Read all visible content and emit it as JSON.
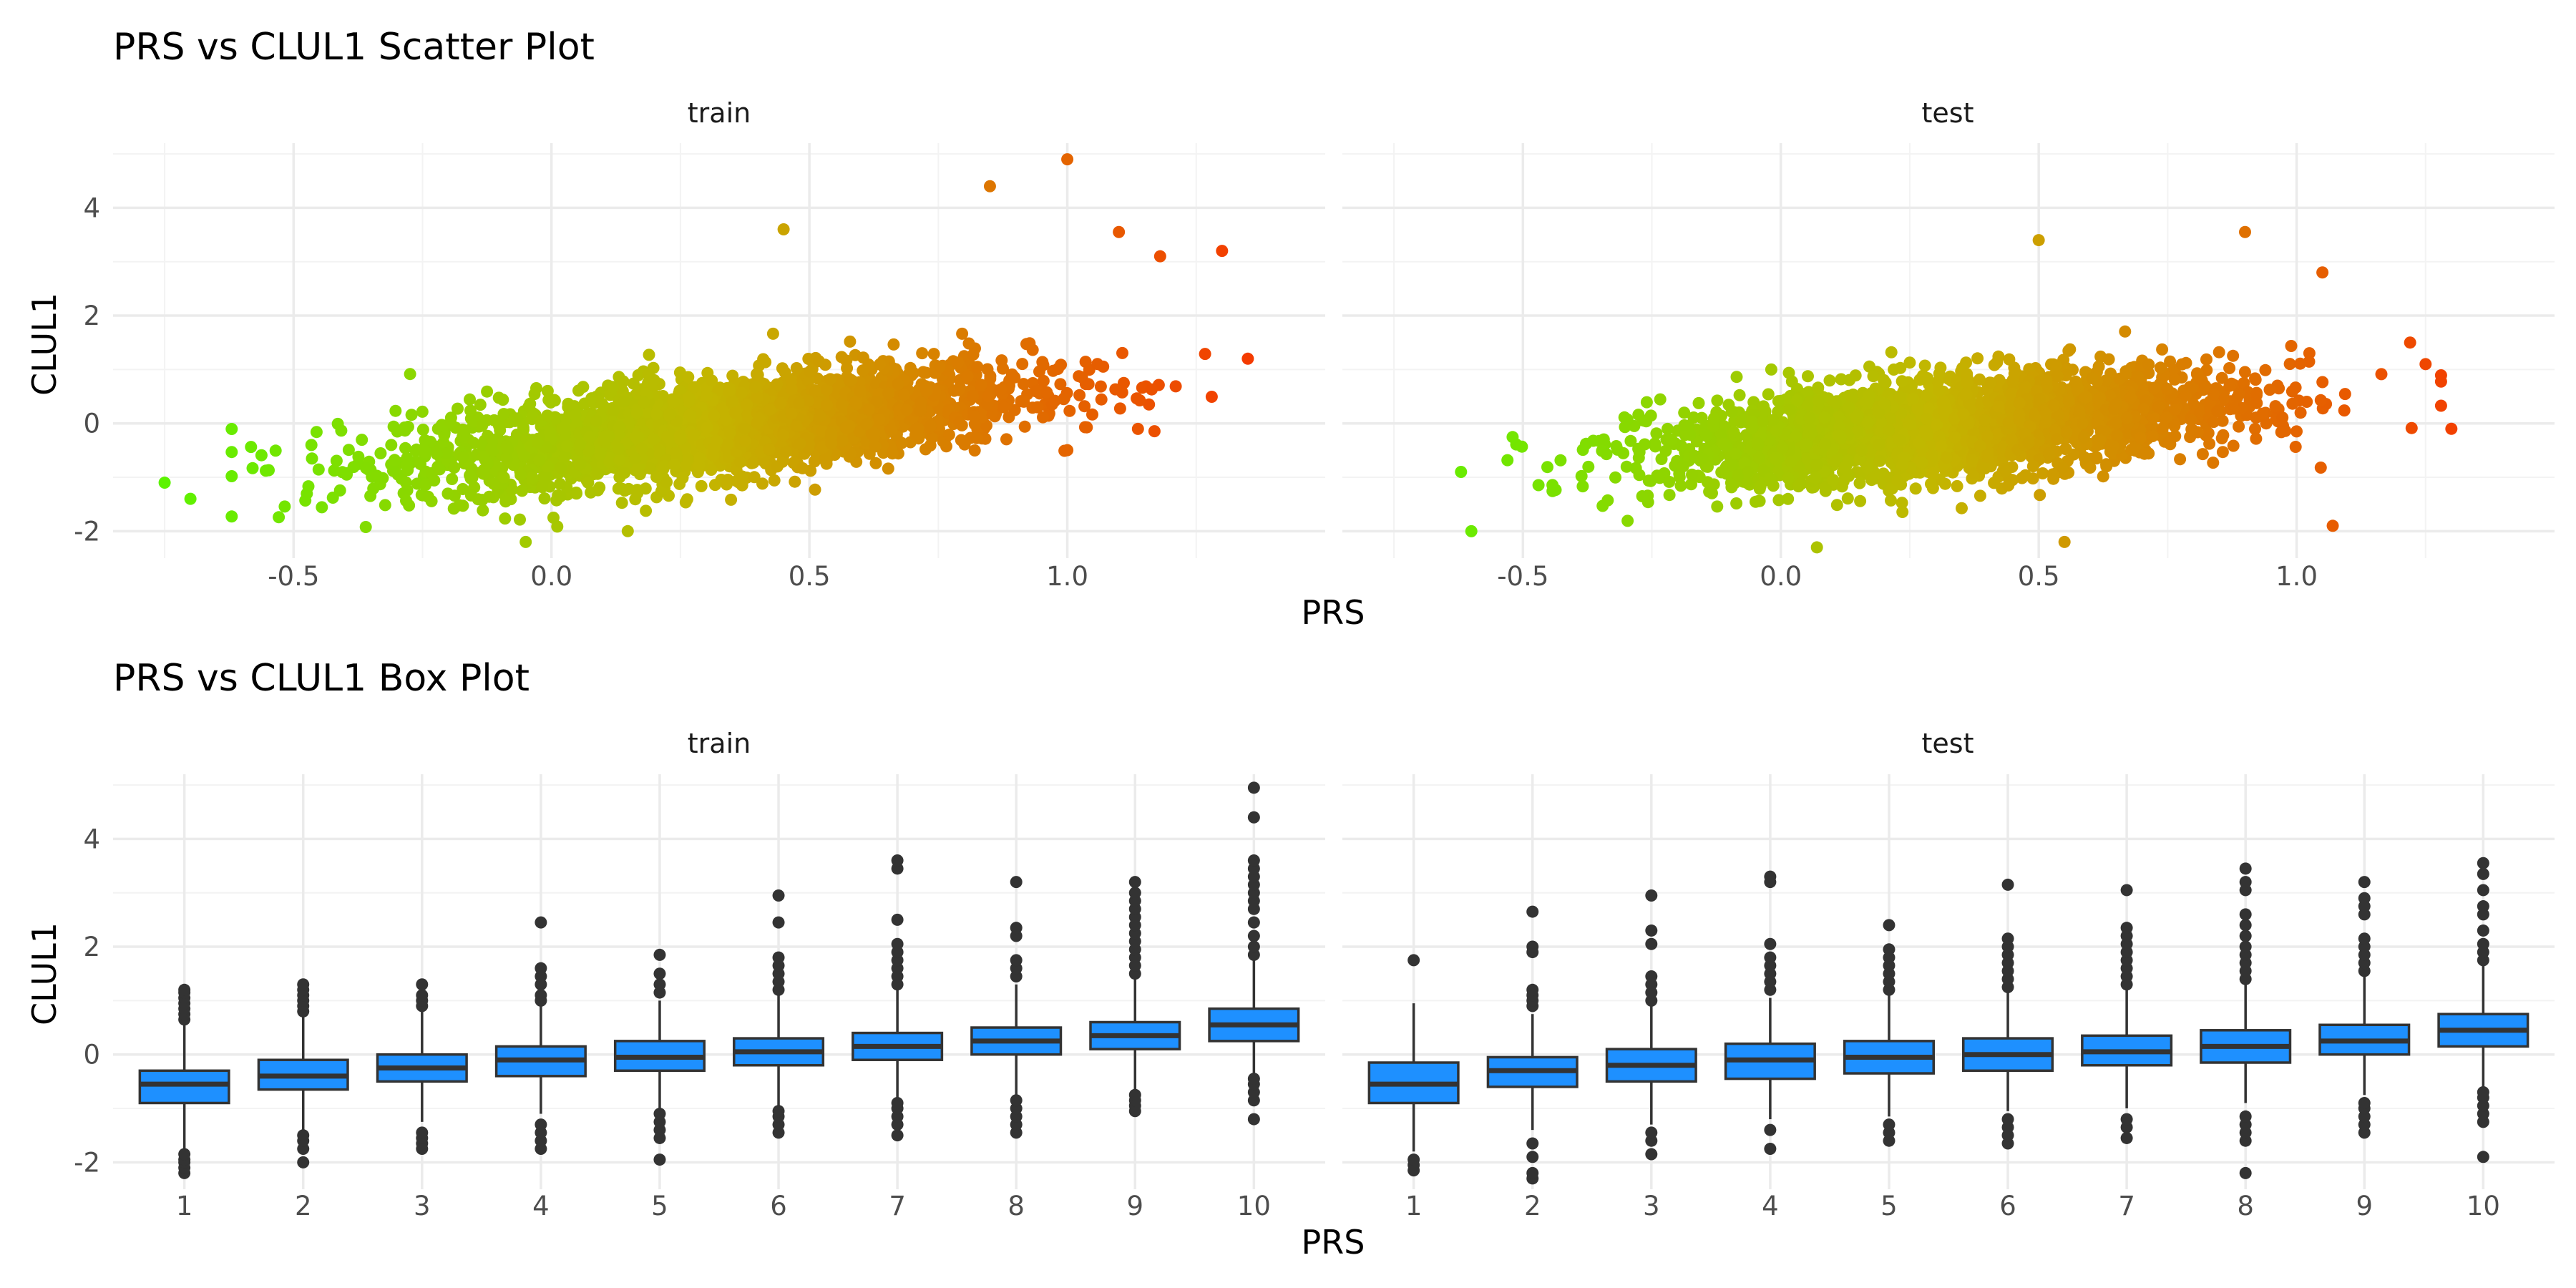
{
  "figure": {
    "scatter_title": "PRS vs CLUL1 Scatter Plot",
    "box_title": "PRS vs CLUL1 Box Plot",
    "scatter_xlabel": "PRS",
    "scatter_ylabel": "CLUL1",
    "box_xlabel": "PRS",
    "box_ylabel": "CLUL1",
    "facets": [
      "train",
      "test"
    ]
  },
  "colors": {
    "low": "#5cf300",
    "mid": "#c3b600",
    "high": "#f43b00",
    "box_fill": "#1e90ff",
    "box_line": "#333333"
  },
  "chart_data": [
    {
      "type": "scatter",
      "title": "PRS vs CLUL1 Scatter Plot",
      "xlabel": "PRS",
      "ylabel": "CLUL1",
      "facets": [
        "train",
        "test"
      ],
      "xlim": [
        -0.85,
        1.5
      ],
      "ylim": [
        -2.5,
        5.2
      ],
      "x_ticks": [
        "-0.5",
        "0.0",
        "0.5",
        "1.0"
      ],
      "x_tick_values": [
        -0.5,
        0.0,
        0.5,
        1.0
      ],
      "y_ticks": [
        "-2",
        "0",
        "2",
        "4"
      ],
      "y_tick_values": [
        -2,
        0,
        2,
        4
      ],
      "color_by": "PRS (green low to red high)",
      "trend": {
        "train": {
          "intercept": -0.4,
          "slope": 1.05
        },
        "test": {
          "intercept": -0.35,
          "slope": 0.85
        }
      },
      "notable_points": {
        "train": [
          {
            "x": -0.75,
            "y": -1.1
          },
          {
            "x": -0.7,
            "y": -1.4
          },
          {
            "x": 0.85,
            "y": 4.4
          },
          {
            "x": 1.0,
            "y": 4.9
          },
          {
            "x": 1.35,
            "y": 1.2
          },
          {
            "x": 1.3,
            "y": 3.2
          },
          {
            "x": 0.45,
            "y": 3.6
          },
          {
            "x": -0.05,
            "y": -2.2
          },
          {
            "x": 1.1,
            "y": 3.55
          },
          {
            "x": 1.18,
            "y": 3.1
          }
        ],
        "test": [
          {
            "x": -0.6,
            "y": -2.0
          },
          {
            "x": -0.62,
            "y": -0.9
          },
          {
            "x": 1.3,
            "y": -0.1
          },
          {
            "x": 1.25,
            "y": 1.1
          },
          {
            "x": 1.07,
            "y": -1.9
          },
          {
            "x": 0.5,
            "y": 3.4
          },
          {
            "x": 0.9,
            "y": 3.55
          },
          {
            "x": 1.05,
            "y": 2.8
          },
          {
            "x": 0.55,
            "y": -2.2
          },
          {
            "x": 0.07,
            "y": -2.3
          },
          {
            "x": 1.22,
            "y": 1.5
          }
        ]
      }
    },
    {
      "type": "box",
      "title": "PRS vs CLUL1 Box Plot",
      "xlabel": "PRS",
      "ylabel": "CLUL1",
      "facets": [
        "train",
        "test"
      ],
      "categories": [
        "1",
        "2",
        "3",
        "4",
        "5",
        "6",
        "7",
        "8",
        "9",
        "10"
      ],
      "ylim": [
        -2.5,
        5.2
      ],
      "y_ticks": [
        "-2",
        "0",
        "2",
        "4"
      ],
      "y_tick_values": [
        -2,
        0,
        2,
        4
      ],
      "series": [
        {
          "name": "train",
          "boxes": [
            {
              "q1": -0.9,
              "median": -0.55,
              "q3": -0.3,
              "lower": -1.75,
              "upper": 0.55,
              "outliers": [
                -2.2,
                -2.1,
                -2.0,
                -1.95,
                -1.85,
                0.65,
                0.75,
                0.85,
                0.95,
                1.05,
                1.15,
                1.2
              ]
            },
            {
              "q1": -0.65,
              "median": -0.4,
              "q3": -0.1,
              "lower": -1.4,
              "upper": 0.75,
              "outliers": [
                -2.0,
                -1.75,
                -1.6,
                -1.5,
                0.8,
                0.9,
                1.0,
                1.1,
                1.2,
                1.3
              ]
            },
            {
              "q1": -0.5,
              "median": -0.25,
              "q3": 0.0,
              "lower": -1.25,
              "upper": 0.8,
              "outliers": [
                -1.75,
                -1.65,
                -1.55,
                -1.45,
                0.9,
                1.0,
                1.1,
                1.3
              ]
            },
            {
              "q1": -0.4,
              "median": -0.1,
              "q3": 0.15,
              "lower": -1.1,
              "upper": 0.9,
              "outliers": [
                -1.75,
                -1.6,
                -1.45,
                -1.3,
                1.0,
                1.1,
                1.3,
                1.45,
                1.6,
                2.45
              ]
            },
            {
              "q1": -0.3,
              "median": -0.05,
              "q3": 0.25,
              "lower": -1.0,
              "upper": 1.0,
              "outliers": [
                -1.95,
                -1.55,
                -1.4,
                -1.25,
                -1.1,
                1.15,
                1.3,
                1.5,
                1.85
              ]
            },
            {
              "q1": -0.2,
              "median": 0.05,
              "q3": 0.3,
              "lower": -0.95,
              "upper": 1.1,
              "outliers": [
                -1.45,
                -1.3,
                -1.15,
                -1.05,
                1.2,
                1.35,
                1.5,
                1.65,
                1.8,
                2.45,
                2.95
              ]
            },
            {
              "q1": -0.1,
              "median": 0.15,
              "q3": 0.4,
              "lower": -0.85,
              "upper": 1.2,
              "outliers": [
                -1.5,
                -1.3,
                -1.15,
                -1.0,
                -0.9,
                1.3,
                1.45,
                1.6,
                1.75,
                1.9,
                2.05,
                2.5,
                3.45,
                3.6
              ]
            },
            {
              "q1": 0.0,
              "median": 0.25,
              "q3": 0.5,
              "lower": -0.75,
              "upper": 1.3,
              "outliers": [
                -1.45,
                -1.3,
                -1.15,
                -1.0,
                -0.85,
                1.45,
                1.6,
                1.75,
                2.2,
                2.35,
                3.2
              ]
            },
            {
              "q1": 0.1,
              "median": 0.35,
              "q3": 0.6,
              "lower": -0.65,
              "upper": 1.4,
              "outliers": [
                -1.05,
                -0.95,
                -0.85,
                -0.75,
                1.5,
                1.65,
                1.8,
                1.95,
                2.1,
                2.25,
                2.4,
                2.55,
                2.7,
                2.85,
                3.0,
                3.2
              ]
            },
            {
              "q1": 0.25,
              "median": 0.55,
              "q3": 0.85,
              "lower": -0.35,
              "upper": 1.75,
              "outliers": [
                -1.2,
                -0.85,
                -0.7,
                -0.55,
                -0.45,
                1.85,
                2.0,
                2.2,
                2.45,
                2.7,
                2.85,
                3.0,
                3.15,
                3.3,
                3.45,
                3.6,
                4.4,
                4.95
              ]
            }
          ]
        },
        {
          "name": "test",
          "boxes": [
            {
              "q1": -0.9,
              "median": -0.55,
              "q3": -0.15,
              "lower": -1.8,
              "upper": 0.95,
              "outliers": [
                -2.15,
                -2.05,
                -1.95,
                1.75
              ]
            },
            {
              "q1": -0.6,
              "median": -0.3,
              "q3": -0.05,
              "lower": -1.4,
              "upper": 0.75,
              "outliers": [
                -2.3,
                -2.2,
                -1.9,
                -1.65,
                0.9,
                1.0,
                1.1,
                1.2,
                1.9,
                2.0,
                2.65
              ]
            },
            {
              "q1": -0.5,
              "median": -0.2,
              "q3": 0.1,
              "lower": -1.3,
              "upper": 0.9,
              "outliers": [
                -1.85,
                -1.6,
                -1.45,
                1.0,
                1.15,
                1.3,
                1.45,
                2.05,
                2.3,
                2.95
              ]
            },
            {
              "q1": -0.45,
              "median": -0.1,
              "q3": 0.2,
              "lower": -1.2,
              "upper": 1.05,
              "outliers": [
                -1.75,
                -1.4,
                1.2,
                1.35,
                1.5,
                1.65,
                1.8,
                2.05,
                3.2,
                3.3
              ]
            },
            {
              "q1": -0.35,
              "median": -0.05,
              "q3": 0.25,
              "lower": -1.15,
              "upper": 1.1,
              "outliers": [
                -1.6,
                -1.45,
                -1.3,
                1.2,
                1.35,
                1.5,
                1.65,
                1.8,
                1.95,
                2.4
              ]
            },
            {
              "q1": -0.3,
              "median": 0.0,
              "q3": 0.3,
              "lower": -1.05,
              "upper": 1.15,
              "outliers": [
                -1.65,
                -1.5,
                -1.35,
                -1.2,
                1.25,
                1.4,
                1.55,
                1.7,
                1.85,
                2.0,
                2.15,
                3.15
              ]
            },
            {
              "q1": -0.2,
              "median": 0.05,
              "q3": 0.35,
              "lower": -1.0,
              "upper": 1.2,
              "outliers": [
                -1.55,
                -1.35,
                -1.2,
                1.3,
                1.45,
                1.6,
                1.75,
                1.9,
                2.05,
                2.2,
                2.35,
                3.05
              ]
            },
            {
              "q1": -0.15,
              "median": 0.15,
              "q3": 0.45,
              "lower": -0.9,
              "upper": 1.3,
              "outliers": [
                -2.2,
                -1.6,
                -1.45,
                -1.3,
                -1.15,
                1.4,
                1.55,
                1.7,
                1.85,
                2.0,
                2.2,
                2.4,
                2.6,
                3.05,
                3.2,
                3.45
              ]
            },
            {
              "q1": 0.0,
              "median": 0.25,
              "q3": 0.55,
              "lower": -0.75,
              "upper": 1.45,
              "outliers": [
                -1.45,
                -1.3,
                -1.15,
                -1.0,
                -0.9,
                1.55,
                1.7,
                1.85,
                2.0,
                2.15,
                2.6,
                2.75,
                2.9,
                3.2
              ]
            },
            {
              "q1": 0.15,
              "median": 0.45,
              "q3": 0.75,
              "lower": -0.6,
              "upper": 1.65,
              "outliers": [
                -1.9,
                -1.25,
                -1.1,
                -0.95,
                -0.8,
                -0.7,
                1.75,
                1.9,
                2.05,
                2.3,
                2.6,
                2.75,
                3.05,
                3.35,
                3.55
              ]
            }
          ]
        }
      ]
    }
  ]
}
